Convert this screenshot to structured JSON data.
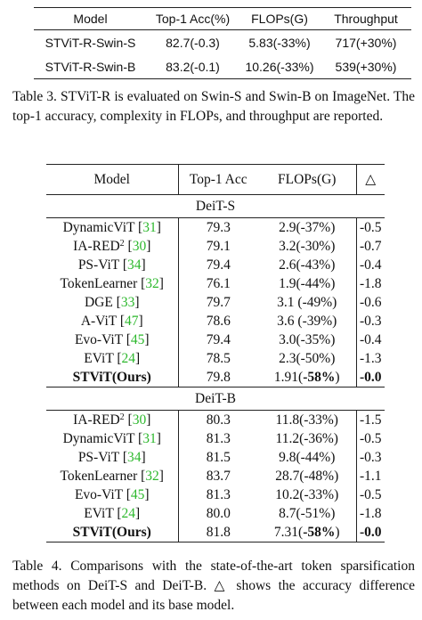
{
  "table3": {
    "columns": [
      "Model",
      "Top-1 Acc(%)",
      "FLOPs(G)",
      "Throughput"
    ],
    "rows": [
      [
        "STViT-R-Swin-S",
        "82.7(-0.3)",
        "5.83(-33%)",
        "717(+30%)"
      ],
      [
        "STViT-R-Swin-B",
        "83.2(-0.1)",
        "10.26(-33%)",
        "539(+30%)"
      ]
    ]
  },
  "caption3": "Table 3.  STViT-R is evaluated on Swin-S and Swin-B on ImageNet. The top-1 accuracy, complexity in FLOPs, and throughput are reported.",
  "table4": {
    "columns": [
      "Model",
      "Top-1 Acc",
      "FLOPs(G)",
      "△"
    ],
    "sections": [
      {
        "title": "DeiT-S",
        "rows": [
          [
            [
              {
                "text": "DynamicViT ["
              },
              {
                "text": "31",
                "style": "cite"
              },
              {
                "text": "]"
              }
            ],
            "79.3",
            "2.9(-37%)",
            "-0.5"
          ],
          [
            [
              {
                "text": "IA-RED"
              },
              {
                "text": "2",
                "style": "sup"
              },
              {
                "text": " ["
              },
              {
                "text": "30",
                "style": "cite"
              },
              {
                "text": "]"
              }
            ],
            "79.1",
            "3.2(-30%)",
            "-0.7"
          ],
          [
            [
              {
                "text": "PS-ViT ["
              },
              {
                "text": "34",
                "style": "cite"
              },
              {
                "text": "]"
              }
            ],
            "79.4",
            "2.6(-43%)",
            "-0.4"
          ],
          [
            [
              {
                "text": "TokenLearner ["
              },
              {
                "text": "32",
                "style": "cite"
              },
              {
                "text": "]"
              }
            ],
            "76.1",
            "1.9(-44%)",
            "-1.8"
          ],
          [
            [
              {
                "text": "DGE ["
              },
              {
                "text": "33",
                "style": "cite"
              },
              {
                "text": "]"
              }
            ],
            "79.7",
            "3.1 (-49%)",
            "-0.6"
          ],
          [
            [
              {
                "text": "A-ViT ["
              },
              {
                "text": "47",
                "style": "cite"
              },
              {
                "text": "]"
              }
            ],
            "78.6",
            "3.6 (-39%)",
            "-0.3"
          ],
          [
            [
              {
                "text": "Evo-ViT ["
              },
              {
                "text": "45",
                "style": "cite"
              },
              {
                "text": "]"
              }
            ],
            "79.4",
            "3.0(-35%)",
            "-0.4"
          ],
          [
            [
              {
                "text": "EViT ["
              },
              {
                "text": "24",
                "style": "cite"
              },
              {
                "text": "]"
              }
            ],
            "78.5",
            "2.3(-50%)",
            "-1.3"
          ],
          [
            [
              {
                "text": "STViT(Ours)",
                "style": "bold"
              }
            ],
            "79.8",
            [
              {
                "text": "1.91("
              },
              {
                "text": "-58%",
                "style": "bold"
              },
              {
                "text": ")"
              }
            ],
            [
              {
                "text": "-0.0",
                "style": "bold"
              }
            ]
          ]
        ]
      },
      {
        "title": "DeiT-B",
        "rows": [
          [
            [
              {
                "text": "IA-RED"
              },
              {
                "text": "2",
                "style": "sup"
              },
              {
                "text": " ["
              },
              {
                "text": "30",
                "style": "cite"
              },
              {
                "text": "]"
              }
            ],
            "80.3",
            "11.8(-33%)",
            "-1.5"
          ],
          [
            [
              {
                "text": "DynamicViT ["
              },
              {
                "text": "31",
                "style": "cite"
              },
              {
                "text": "]"
              }
            ],
            "81.3",
            "11.2(-36%)",
            "-0.5"
          ],
          [
            [
              {
                "text": "PS-ViT ["
              },
              {
                "text": "34",
                "style": "cite"
              },
              {
                "text": "]"
              }
            ],
            "81.5",
            "9.8(-44%)",
            "-0.3"
          ],
          [
            [
              {
                "text": "TokenLearner ["
              },
              {
                "text": "32",
                "style": "cite"
              },
              {
                "text": "]"
              }
            ],
            "83.7",
            "28.7(-48%)",
            "-1.1"
          ],
          [
            [
              {
                "text": "Evo-ViT ["
              },
              {
                "text": "45",
                "style": "cite"
              },
              {
                "text": "]"
              }
            ],
            "81.3",
            "10.2(-33%)",
            "-0.5"
          ],
          [
            [
              {
                "text": "EViT ["
              },
              {
                "text": "24",
                "style": "cite"
              },
              {
                "text": "]"
              }
            ],
            "80.0",
            "8.7(-51%)",
            "-1.8"
          ],
          [
            [
              {
                "text": "STViT(Ours)",
                "style": "bold"
              }
            ],
            "81.8",
            [
              {
                "text": "7.31("
              },
              {
                "text": "-58%",
                "style": "bold"
              },
              {
                "text": ")"
              }
            ],
            [
              {
                "text": "-0.0",
                "style": "bold"
              }
            ]
          ]
        ]
      }
    ]
  },
  "caption4": "Table 4. Comparisons with the state-of-the-art token sparsification methods on DeiT-S and DeiT-B. △ shows the accuracy difference between each model and its base model."
}
